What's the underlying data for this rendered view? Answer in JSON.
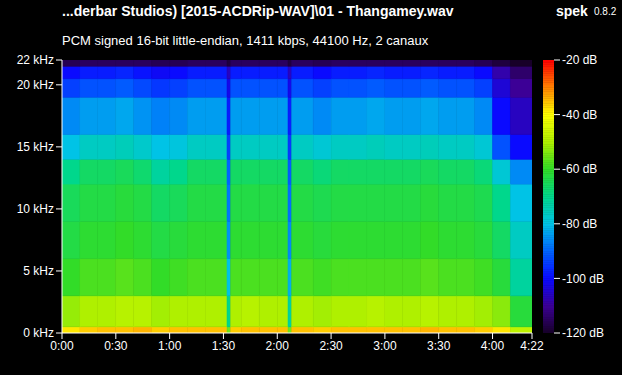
{
  "chart_data": {
    "type": "heatmap",
    "title": "...derbar Studios) [2015-ACDRip-WAV]\\01 - Thangamey.wav",
    "subtitle": "PCM signed 16-bit little-endian, 1411 kbps, 44100 Hz, 2 canaux",
    "annotations": [
      "spek",
      "0.8.2"
    ],
    "xlim": [
      0,
      262
    ],
    "xticks": [
      {
        "value": 0,
        "label": "0:00"
      },
      {
        "value": 30,
        "label": "0:30"
      },
      {
        "value": 60,
        "label": "1:00"
      },
      {
        "value": 90,
        "label": "1:30"
      },
      {
        "value": 120,
        "label": "2:00"
      },
      {
        "value": 150,
        "label": "2:30"
      },
      {
        "value": 180,
        "label": "3:00"
      },
      {
        "value": 210,
        "label": "3:30"
      },
      {
        "value": 240,
        "label": "4:00"
      },
      {
        "value": 262,
        "label": "4:22"
      }
    ],
    "ylim": [
      0,
      22
    ],
    "yticks": [
      {
        "value": 0,
        "label": "0 kHz"
      },
      {
        "value": 5,
        "label": "5 kHz"
      },
      {
        "value": 10,
        "label": "10 kHz"
      },
      {
        "value": 15,
        "label": "15 kHz"
      },
      {
        "value": 20,
        "label": "20 kHz"
      },
      {
        "value": 22,
        "label": "22 kHz"
      }
    ],
    "x_bins": [
      0,
      10,
      20,
      30,
      40,
      50,
      60,
      70,
      80,
      92,
      94,
      100,
      110,
      120,
      126,
      128,
      140,
      150,
      160,
      170,
      180,
      190,
      200,
      210,
      220,
      230,
      240,
      250,
      262
    ],
    "y_bins": [
      0,
      0.5,
      3,
      6,
      9,
      12,
      14,
      16,
      19,
      20.5,
      21.5,
      22
    ],
    "cells": [
      [
        -38,
        -36,
        -35,
        -35,
        -34,
        -36,
        -35,
        -35,
        -35,
        -55,
        -36,
        -35,
        -35,
        -35,
        -55,
        -35,
        -36,
        -35,
        -35,
        -35,
        -35,
        -35,
        -34,
        -35,
        -35,
        -36,
        -38,
        -48
      ],
      [
        -52,
        -50,
        -50,
        -49,
        -49,
        -51,
        -50,
        -50,
        -50,
        -70,
        -50,
        -49,
        -50,
        -50,
        -72,
        -50,
        -51,
        -50,
        -50,
        -49,
        -50,
        -50,
        -49,
        -50,
        -50,
        -51,
        -53,
        -62
      ],
      [
        -60,
        -58,
        -58,
        -57,
        -58,
        -60,
        -59,
        -58,
        -58,
        -80,
        -58,
        -58,
        -58,
        -58,
        -82,
        -58,
        -59,
        -58,
        -58,
        -58,
        -58,
        -58,
        -57,
        -58,
        -58,
        -59,
        -62,
        -72
      ],
      [
        -63,
        -61,
        -61,
        -60,
        -61,
        -63,
        -62,
        -61,
        -61,
        -85,
        -61,
        -61,
        -61,
        -61,
        -86,
        -61,
        -62,
        -61,
        -61,
        -61,
        -61,
        -61,
        -60,
        -61,
        -61,
        -62,
        -66,
        -76
      ],
      [
        -65,
        -63,
        -63,
        -62,
        -63,
        -66,
        -65,
        -63,
        -63,
        -88,
        -63,
        -63,
        -63,
        -63,
        -89,
        -63,
        -64,
        -63,
        -63,
        -63,
        -63,
        -63,
        -62,
        -63,
        -63,
        -64,
        -70,
        -80
      ],
      [
        -70,
        -66,
        -66,
        -65,
        -67,
        -72,
        -70,
        -66,
        -66,
        -90,
        -66,
        -66,
        -66,
        -66,
        -91,
        -66,
        -68,
        -66,
        -66,
        -66,
        -66,
        -66,
        -65,
        -66,
        -66,
        -68,
        -78,
        -86
      ],
      [
        -80,
        -76,
        -76,
        -75,
        -77,
        -80,
        -79,
        -76,
        -76,
        -94,
        -76,
        -76,
        -76,
        -76,
        -95,
        -76,
        -78,
        -76,
        -76,
        -75,
        -76,
        -76,
        -75,
        -76,
        -76,
        -78,
        -92,
        -100
      ],
      [
        -86,
        -84,
        -84,
        -83,
        -85,
        -87,
        -86,
        -84,
        -84,
        -98,
        -84,
        -84,
        -84,
        -84,
        -98,
        -84,
        -86,
        -84,
        -84,
        -83,
        -84,
        -84,
        -83,
        -84,
        -84,
        -86,
        -100,
        -106
      ],
      [
        -94,
        -92,
        -92,
        -91,
        -93,
        -95,
        -94,
        -92,
        -92,
        -102,
        -92,
        -92,
        -92,
        -92,
        -102,
        -92,
        -94,
        -92,
        -92,
        -91,
        -92,
        -92,
        -91,
        -92,
        -92,
        -94,
        -104,
        -110
      ],
      [
        -100,
        -98,
        -98,
        -97,
        -99,
        -101,
        -100,
        -98,
        -98,
        -106,
        -98,
        -98,
        -98,
        -98,
        -106,
        -98,
        -100,
        -98,
        -98,
        -97,
        -98,
        -98,
        -97,
        -98,
        -98,
        -100,
        -108,
        -114
      ],
      [
        -116,
        -115,
        -115,
        -115,
        -115,
        -116,
        -116,
        -115,
        -115,
        -118,
        -115,
        -115,
        -115,
        -115,
        -118,
        -115,
        -116,
        -115,
        -115,
        -115,
        -115,
        -115,
        -115,
        -115,
        -115,
        -116,
        -118,
        -120
      ]
    ],
    "colorbar": {
      "range": [
        -120,
        -20
      ],
      "ticks": [
        {
          "value": -20,
          "label": "-20 dB"
        },
        {
          "value": -40,
          "label": "-40 dB"
        },
        {
          "value": -60,
          "label": "-60 dB"
        },
        {
          "value": -80,
          "label": "-80 dB"
        },
        {
          "value": -100,
          "label": "-100 dB"
        },
        {
          "value": -120,
          "label": "-120 dB"
        }
      ]
    }
  }
}
